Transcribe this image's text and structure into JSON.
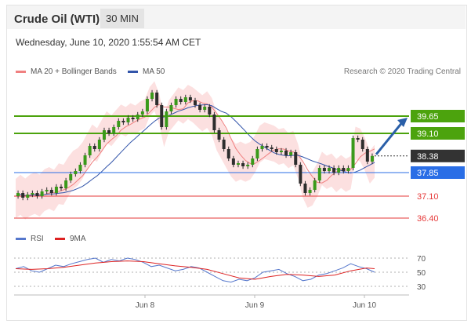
{
  "header": {
    "title": "Crude Oil (WTI)",
    "timeframe": "30 MIN",
    "datetime": "Wednesday, June 10, 2020 1:55:54 AM CET"
  },
  "legend": {
    "items": [
      {
        "label": "MA 20 + Bollinger Bands",
        "color": "#f08080"
      },
      {
        "label": "MA 50",
        "color": "#3355aa"
      }
    ],
    "credit": "Research © 2020 Trading Central"
  },
  "rsi_legend": {
    "items": [
      {
        "label": "RSI",
        "color": "#5577cc"
      },
      {
        "label": "9MA",
        "color": "#dd2222"
      }
    ]
  },
  "chart_data": {
    "type": "line",
    "price_levels": [
      {
        "value": 39.65,
        "label": "39.65",
        "kind": "resistance",
        "color": "#4ca30d"
      },
      {
        "value": 39.1,
        "label": "39.10",
        "kind": "resistance",
        "color": "#4ca30d"
      },
      {
        "value": 38.38,
        "label": "38.38",
        "kind": "last",
        "color": "#333333"
      },
      {
        "value": 37.85,
        "label": "37.85",
        "kind": "pivot",
        "color": "#2a6ee6"
      },
      {
        "value": 37.1,
        "label": "37.10",
        "kind": "support",
        "color": "#e63a3a"
      },
      {
        "value": 36.4,
        "label": "36.40",
        "kind": "support",
        "color": "#e63a3a"
      }
    ],
    "x_ticks": [
      "Jun 8",
      "Jun 9",
      "Jun 10"
    ],
    "rsi_ticks": [
      70,
      50,
      30
    ],
    "price_path": [
      [
        0,
        37.1
      ],
      [
        6,
        37.2
      ],
      [
        12,
        37.05
      ],
      [
        18,
        37.15
      ],
      [
        24,
        37.2
      ],
      [
        30,
        37.1
      ],
      [
        36,
        37.25
      ],
      [
        42,
        37.3
      ],
      [
        48,
        37.2
      ],
      [
        54,
        37.4
      ],
      [
        60,
        37.35
      ],
      [
        66,
        37.6
      ],
      [
        72,
        37.8
      ],
      [
        78,
        37.9
      ],
      [
        84,
        38.1
      ],
      [
        90,
        38.4
      ],
      [
        96,
        38.7
      ],
      [
        102,
        38.6
      ],
      [
        108,
        38.9
      ],
      [
        114,
        39.2
      ],
      [
        120,
        39.1
      ],
      [
        126,
        39.3
      ],
      [
        132,
        39.5
      ],
      [
        138,
        39.45
      ],
      [
        144,
        39.6
      ],
      [
        150,
        39.55
      ],
      [
        156,
        39.7
      ],
      [
        162,
        39.8
      ],
      [
        168,
        40.2
      ],
      [
        174,
        40.4
      ],
      [
        180,
        40.0
      ],
      [
        186,
        39.3
      ],
      [
        192,
        39.8
      ],
      [
        198,
        40.0
      ],
      [
        204,
        40.2
      ],
      [
        210,
        40.1
      ],
      [
        216,
        40.25
      ],
      [
        222,
        40.15
      ],
      [
        228,
        40.0
      ],
      [
        234,
        39.85
      ],
      [
        240,
        39.95
      ],
      [
        246,
        39.7
      ],
      [
        252,
        39.2
      ],
      [
        258,
        38.9
      ],
      [
        264,
        38.6
      ],
      [
        270,
        38.3
      ],
      [
        276,
        38.1
      ],
      [
        282,
        38.15
      ],
      [
        288,
        38.05
      ],
      [
        294,
        38.1
      ],
      [
        300,
        38.3
      ],
      [
        306,
        38.6
      ],
      [
        312,
        38.7
      ],
      [
        318,
        38.65
      ],
      [
        324,
        38.6
      ],
      [
        330,
        38.5
      ],
      [
        336,
        38.55
      ],
      [
        342,
        38.4
      ],
      [
        348,
        38.5
      ],
      [
        354,
        38.1
      ],
      [
        360,
        37.5
      ],
      [
        366,
        37.2
      ],
      [
        372,
        37.3
      ],
      [
        378,
        37.6
      ],
      [
        384,
        38.0
      ],
      [
        390,
        37.9
      ],
      [
        396,
        38.0
      ],
      [
        402,
        37.85
      ],
      [
        408,
        38.0
      ],
      [
        414,
        37.9
      ],
      [
        420,
        38.0
      ],
      [
        426,
        38.95
      ],
      [
        432,
        38.9
      ],
      [
        438,
        38.6
      ],
      [
        444,
        38.2
      ],
      [
        450,
        38.38
      ]
    ],
    "rsi_path": [
      [
        0,
        55
      ],
      [
        10,
        58
      ],
      [
        20,
        52
      ],
      [
        30,
        50
      ],
      [
        40,
        55
      ],
      [
        50,
        60
      ],
      [
        60,
        58
      ],
      [
        70,
        62
      ],
      [
        80,
        65
      ],
      [
        90,
        68
      ],
      [
        100,
        70
      ],
      [
        110,
        64
      ],
      [
        120,
        68
      ],
      [
        130,
        66
      ],
      [
        140,
        70
      ],
      [
        150,
        68
      ],
      [
        160,
        64
      ],
      [
        170,
        58
      ],
      [
        180,
        60
      ],
      [
        190,
        56
      ],
      [
        200,
        52
      ],
      [
        210,
        54
      ],
      [
        220,
        58
      ],
      [
        230,
        56
      ],
      [
        240,
        50
      ],
      [
        250,
        44
      ],
      [
        260,
        38
      ],
      [
        270,
        36
      ],
      [
        280,
        40
      ],
      [
        290,
        38
      ],
      [
        300,
        42
      ],
      [
        310,
        50
      ],
      [
        320,
        52
      ],
      [
        330,
        54
      ],
      [
        340,
        48
      ],
      [
        350,
        44
      ],
      [
        360,
        38
      ],
      [
        370,
        40
      ],
      [
        380,
        46
      ],
      [
        390,
        48
      ],
      [
        400,
        52
      ],
      [
        410,
        56
      ],
      [
        420,
        62
      ],
      [
        430,
        58
      ],
      [
        440,
        55
      ],
      [
        450,
        50
      ]
    ],
    "rsi_ma_path": [
      [
        0,
        55
      ],
      [
        20,
        54
      ],
      [
        40,
        55
      ],
      [
        60,
        57
      ],
      [
        80,
        60
      ],
      [
        100,
        63
      ],
      [
        120,
        65
      ],
      [
        140,
        66
      ],
      [
        160,
        65
      ],
      [
        180,
        62
      ],
      [
        200,
        59
      ],
      [
        220,
        57
      ],
      [
        240,
        54
      ],
      [
        260,
        48
      ],
      [
        280,
        42
      ],
      [
        300,
        40
      ],
      [
        320,
        44
      ],
      [
        340,
        47
      ],
      [
        360,
        46
      ],
      [
        380,
        44
      ],
      [
        400,
        46
      ],
      [
        420,
        52
      ],
      [
        440,
        56
      ],
      [
        450,
        55
      ]
    ]
  }
}
